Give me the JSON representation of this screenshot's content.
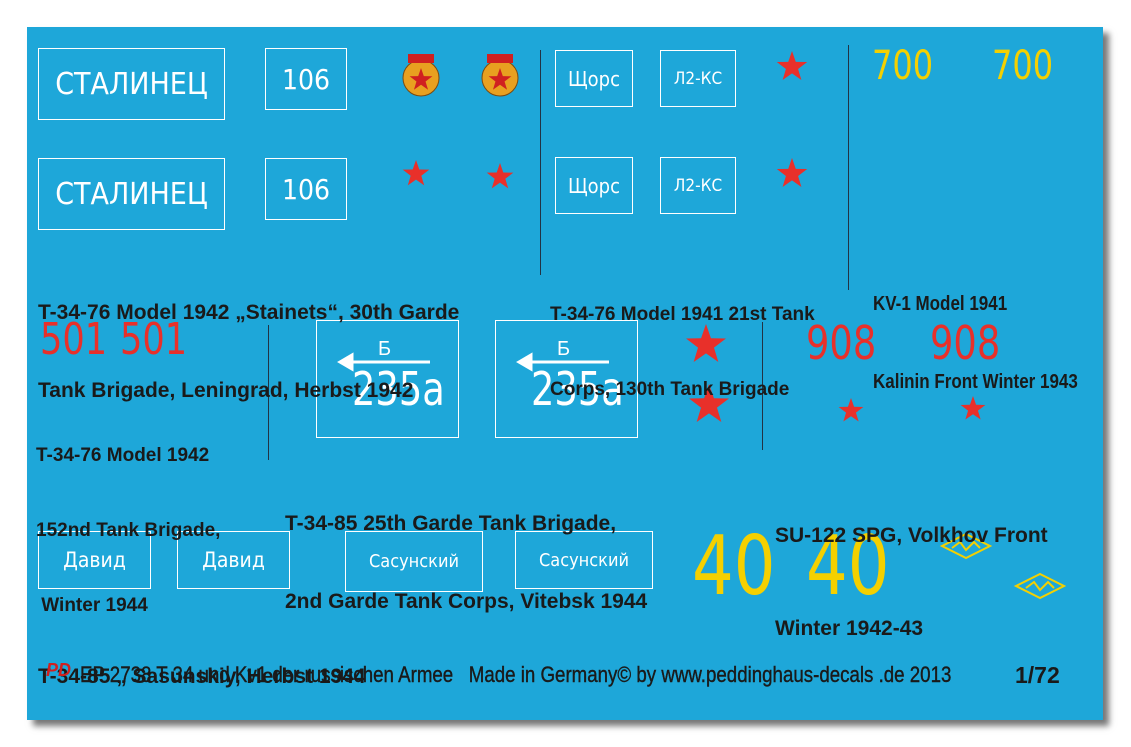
{
  "decals": {
    "stalinets": [
      "СТАЛИНЕЦ",
      "СТАЛИНЕЦ"
    ],
    "number_106": [
      "106",
      "106"
    ],
    "shchors": [
      "Щорс",
      "Щорс"
    ],
    "l2ks": [
      "Л2-КС",
      "Л2-КС"
    ],
    "number_700": [
      "700",
      "700"
    ],
    "number_501": [
      "501",
      "501"
    ],
    "arrow_letter": [
      "Б",
      "Б"
    ],
    "number_235a": [
      "235а",
      "235а"
    ],
    "number_908": [
      "908",
      "908"
    ],
    "david": [
      "Давид",
      "Давид"
    ],
    "sasunskiy": [
      "Сасунский",
      "Сасунский"
    ],
    "number_40": [
      "40",
      "40"
    ]
  },
  "captions": [
    [
      "T-34-76 Model 1942 „Stainets“, 30th Garde",
      "Tank Brigade, Leningrad, Herbst 1942"
    ],
    [
      "T-34-76 Model 1941 21st Tank",
      "Corps, 130th Tank Brigade"
    ],
    [
      "KV-1 Model 1941",
      "Kalinin Front Winter 1943"
    ],
    [
      "T-34-76 Model 1942",
      "152nd Tank Brigade,",
      " Winter 1944"
    ],
    [
      "T-34-85 25th Garde Tank Brigade,",
      "2nd Garde Tank Corps, Vitebsk 1944"
    ],
    [
      "SU-122 SPG, Volkhov Front",
      "Winter 1942-43"
    ],
    [
      "T-34-85 „ Sasunskiy, Herbst 1944"
    ]
  ],
  "footer": {
    "logo": "PD",
    "text": "EP 2738 T 34 und Kv1 der russischen Armee   Made in Germany© by www.peddinghaus-decals .de 2013",
    "scale": "1/72"
  }
}
